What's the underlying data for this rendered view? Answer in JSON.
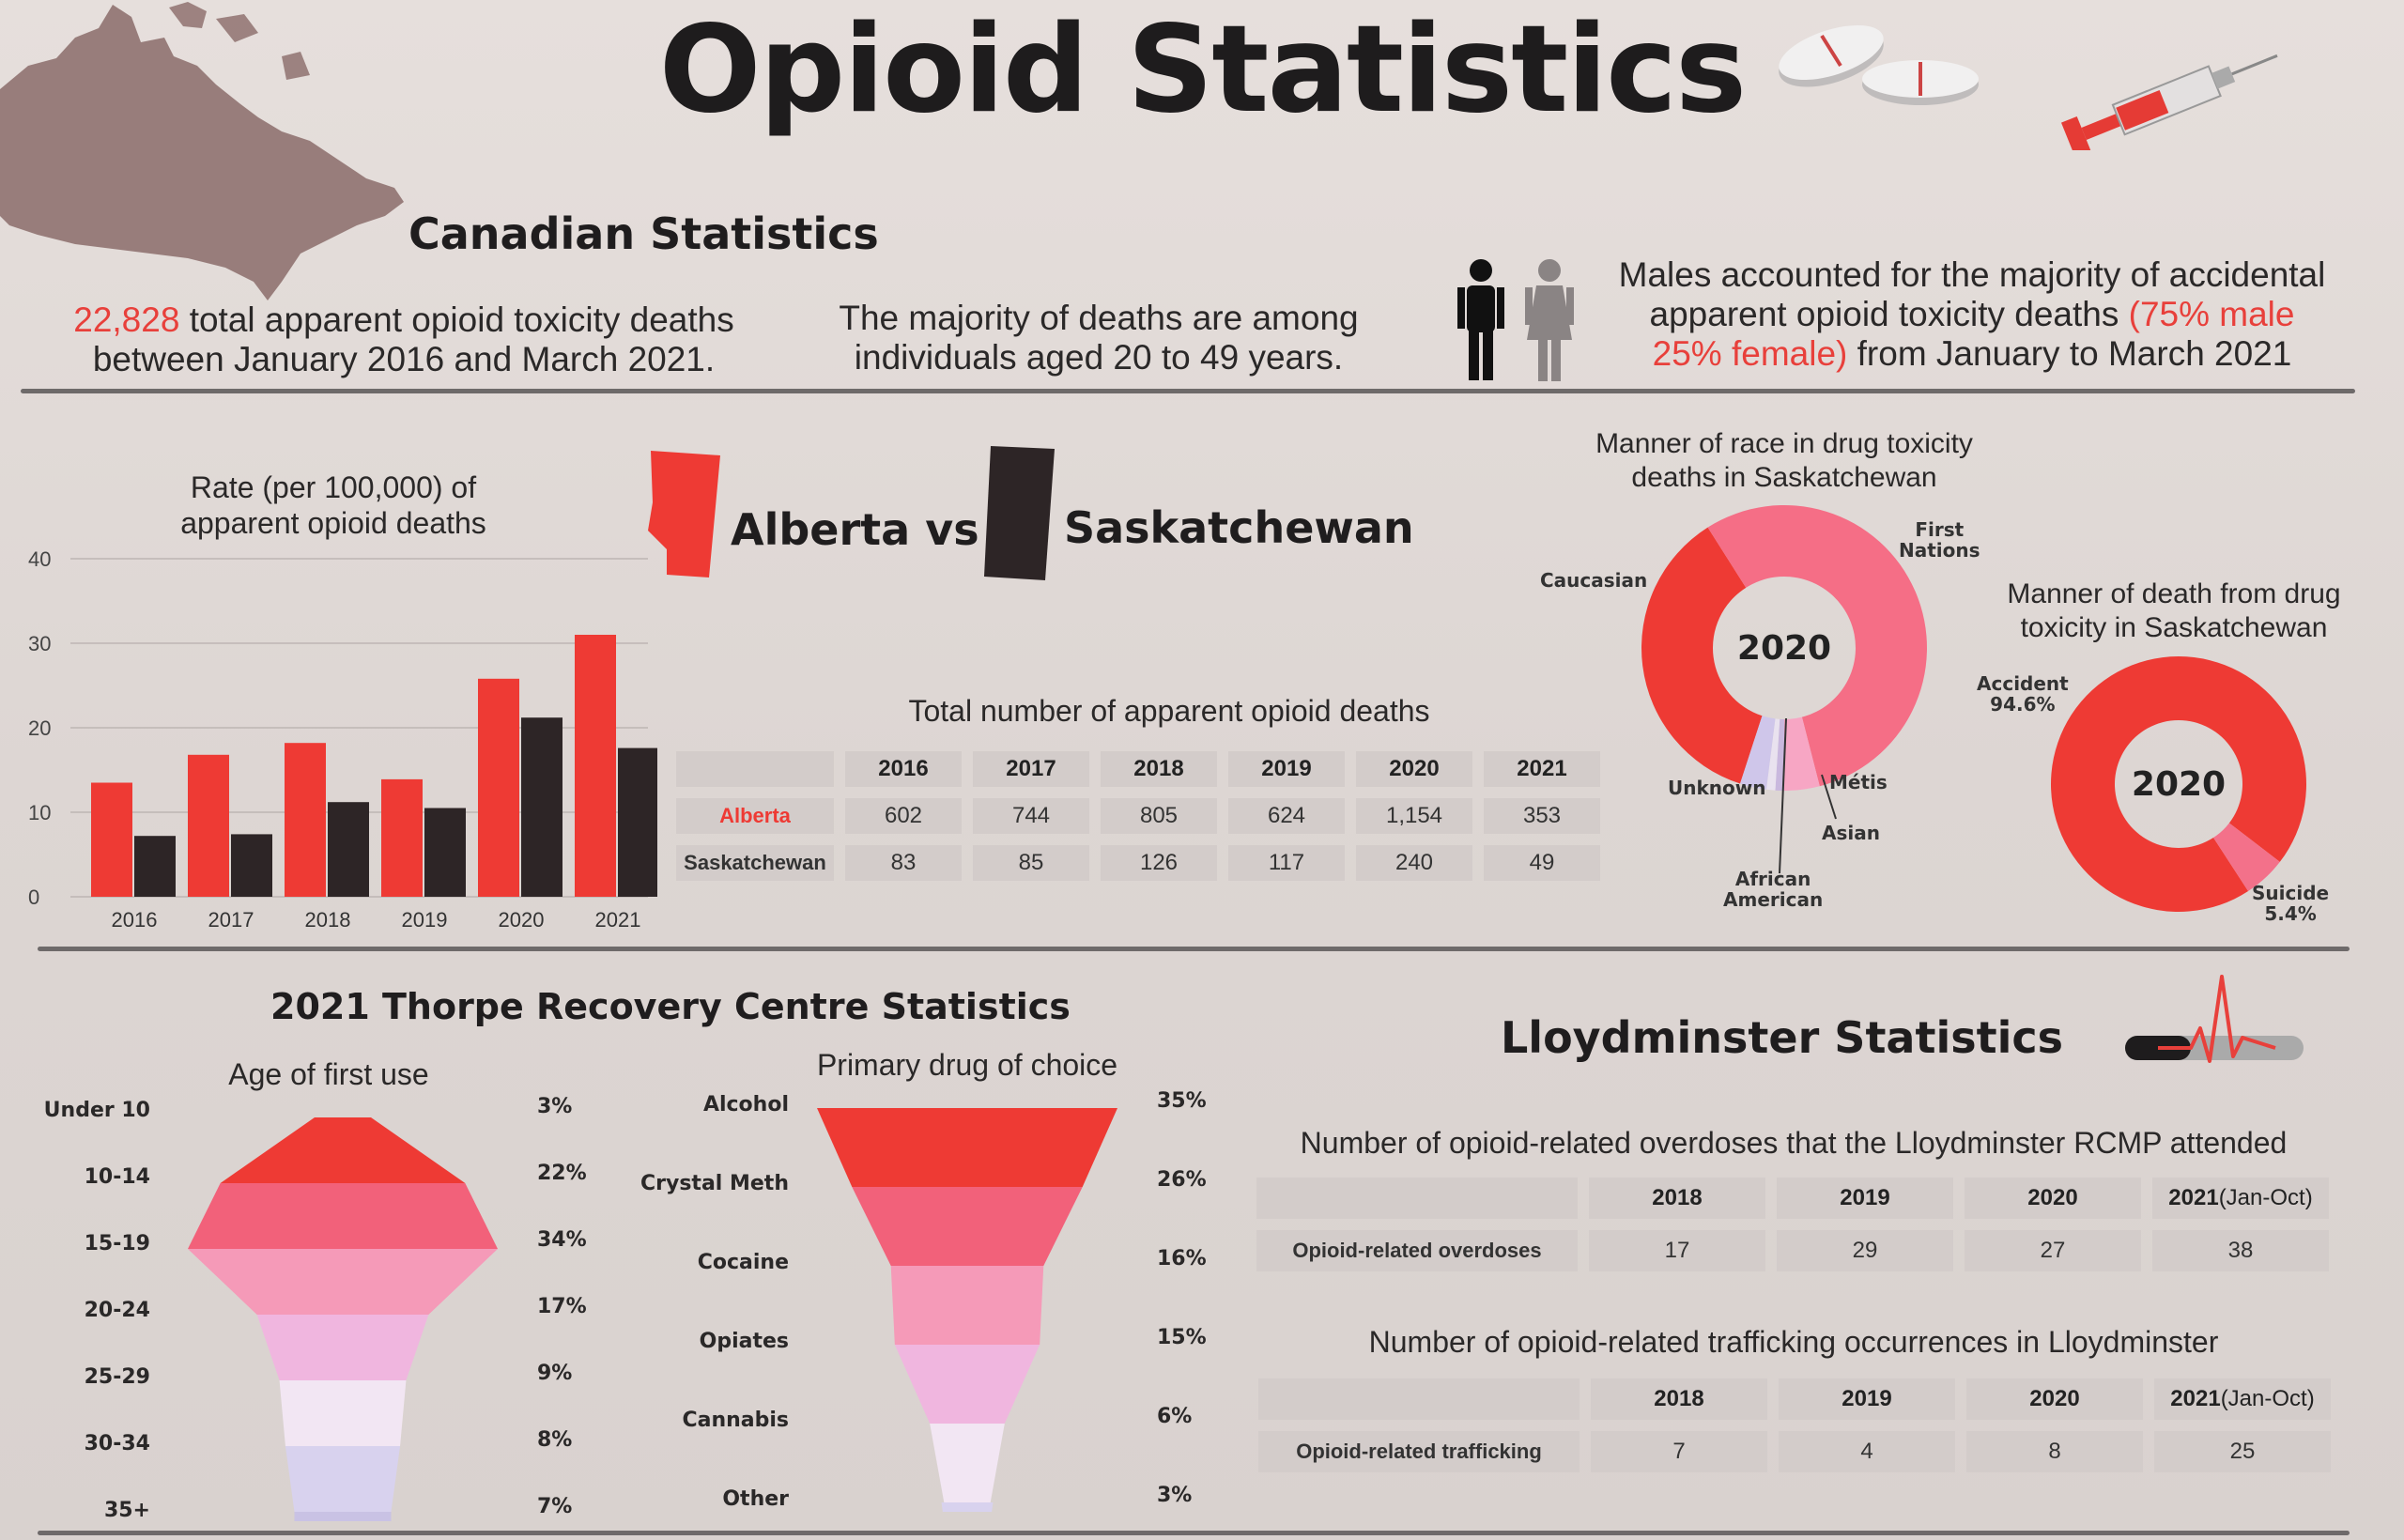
{
  "title": "Opioid Statistics",
  "canadian": {
    "heading": "Canadian Statistics",
    "stat1_number": "22,828",
    "stat1_text_a": "total apparent opioid toxicity deaths",
    "stat1_text_b": "between January 2016 and March 2021.",
    "stat2_line1": "The majority of deaths are among",
    "stat2_line2": "individuals aged 20 to 49 years.",
    "stat3_line1": "Males accounted for the majority of accidental",
    "stat3_line2a": "apparent opioid toxicity deaths ",
    "stat3_line2b": "(75% male",
    "stat3_line3a": "25% female)",
    "stat3_line3b": " from January to March 2021"
  },
  "compare": {
    "alberta": "Alberta vs",
    "saskatchewan": "Saskatchewan"
  },
  "colors": {
    "alberta": "#ee3a34",
    "saskatchewan": "#2d2526",
    "pink": "#f06a7a",
    "lightpink": "#f5a6c0",
    "lavender": "#d6c6e6"
  },
  "chart_data": [
    {
      "type": "bar",
      "title": "Rate (per 100,000) of apparent opioid deaths",
      "title_line1": "Rate (per 100,000) of",
      "title_line2": "apparent opioid deaths",
      "categories": [
        "2016",
        "2017",
        "2018",
        "2019",
        "2020",
        "2021"
      ],
      "series": [
        {
          "name": "Alberta",
          "values": [
            13.5,
            16.8,
            18.2,
            13.9,
            25.8,
            31
          ]
        },
        {
          "name": "Saskatchewan",
          "values": [
            7.2,
            7.4,
            11.2,
            10.5,
            21.2,
            17.6
          ]
        }
      ],
      "yticks": [
        "0",
        "10",
        "20",
        "30",
        "40"
      ],
      "ylim": [
        0,
        40
      ]
    },
    {
      "type": "table",
      "title": "Total number of apparent opioid deaths",
      "columns": [
        "2016",
        "2017",
        "2018",
        "2019",
        "2020",
        "2021"
      ],
      "rows": [
        {
          "label": "Alberta",
          "values": [
            "602",
            "744",
            "805",
            "624",
            "1,154",
            "353"
          ]
        },
        {
          "label": "Saskatchewan",
          "values": [
            "83",
            "85",
            "126",
            "117",
            "240",
            "49"
          ]
        }
      ]
    },
    {
      "type": "pie",
      "title_line1": "Manner of race in drug toxicity",
      "title_line2": "deaths in Saskatchewan",
      "center_label": "2020",
      "slices": [
        {
          "label": "Caucasian",
          "value": 36
        },
        {
          "label": "First Nations",
          "value": 55
        },
        {
          "label": "Métis",
          "value": 4
        },
        {
          "label": "Asian",
          "value": 1
        },
        {
          "label": "African American",
          "value": 1
        },
        {
          "label": "Unknown",
          "value": 3
        }
      ],
      "labels_text": {
        "caucasian": "Caucasian",
        "first1": "First",
        "first2": "Nations",
        "metis": "Métis",
        "asian": "Asian",
        "african1": "African",
        "african2": "American",
        "unknown": "Unknown"
      }
    },
    {
      "type": "pie",
      "title_line1": "Manner of death from drug",
      "title_line2": "toxicity in Saskatchewan",
      "center_label": "2020",
      "slices": [
        {
          "label": "Accident",
          "value": 94.6
        },
        {
          "label": "Suicide",
          "value": 5.4
        }
      ],
      "labels_text": {
        "accident": "Accident",
        "accident_pct": "94.6%",
        "suicide": "Suicide",
        "suicide_pct": "5.4%"
      }
    },
    {
      "type": "bar",
      "title": "Age of first use",
      "categories": [
        "Under 10",
        "10-14",
        "15-19",
        "20-24",
        "25-29",
        "30-34",
        "35+"
      ],
      "values": [
        3,
        22,
        34,
        17,
        9,
        8,
        7
      ],
      "pct_labels": [
        "3%",
        "22%",
        "34%",
        "17%",
        "9%",
        "8%",
        "7%"
      ]
    },
    {
      "type": "bar",
      "title": "Primary drug of choice",
      "categories": [
        "Alcohol",
        "Crystal Meth",
        "Cocaine",
        "Opiates",
        "Cannabis",
        "Other"
      ],
      "values": [
        35,
        26,
        16,
        15,
        6,
        3
      ],
      "pct_labels": [
        "35%",
        "26%",
        "16%",
        "15%",
        "6%",
        "3%"
      ]
    },
    {
      "type": "table",
      "title": "Number of opioid-related overdoses that the Lloydminster RCMP attended",
      "columns": [
        "2018",
        "2019",
        "2020",
        "2021 (Jan-Oct)"
      ],
      "rows": [
        {
          "label": "Opioid-related overdoses",
          "values": [
            "17",
            "29",
            "27",
            "38"
          ]
        }
      ]
    },
    {
      "type": "table",
      "title": "Number of opioid-related trafficking occurrences in Lloydminster",
      "columns": [
        "2018",
        "2019",
        "2020",
        "2021 (Jan-Oct)"
      ],
      "rows": [
        {
          "label": "Opioid-related trafficking",
          "values": [
            "7",
            "4",
            "8",
            "25"
          ]
        }
      ]
    }
  ],
  "thorpe": {
    "heading": "2021 Thorpe Recovery Centre Statistics"
  },
  "lloyd": {
    "heading": "Lloydminster Statistics",
    "col_2021_year": "2021",
    "col_2021_note": " (Jan-Oct)"
  }
}
